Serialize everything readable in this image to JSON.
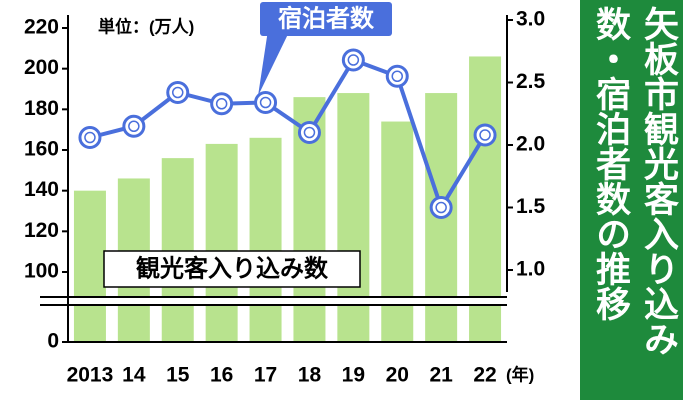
{
  "chart_data": {
    "type": "bar_line",
    "title": "矢板市観光客入り込み数・宿泊者数の推移",
    "unit_label": "単位：(万人)",
    "x_unit": "(年)",
    "categories": [
      "2013",
      "14",
      "15",
      "16",
      "17",
      "18",
      "19",
      "20",
      "21",
      "22"
    ],
    "series": [
      {
        "name": "観光客入り込み数",
        "type": "bar",
        "color": "#b8e38e",
        "values": [
          140,
          146,
          156,
          163,
          166,
          186,
          188,
          174,
          188,
          206
        ]
      },
      {
        "name": "宿泊者数",
        "type": "line",
        "axis": "y2",
        "color": "#4a6fdc",
        "values": [
          2.06,
          2.15,
          2.42,
          2.33,
          2.34,
          2.1,
          2.68,
          2.55,
          1.5,
          2.08
        ]
      }
    ],
    "ylim": [
      0,
      220
    ],
    "yticks": [
      0,
      100,
      120,
      140,
      160,
      180,
      200,
      220
    ],
    "axis_break": true,
    "y2lim": [
      1,
      3
    ],
    "y2ticks": [
      {
        "value": 1,
        "label": "1.0"
      },
      1.5,
      {
        "value": 2,
        "label": "2.0"
      },
      2.5,
      {
        "value": 3,
        "label": "3.0"
      }
    ]
  }
}
